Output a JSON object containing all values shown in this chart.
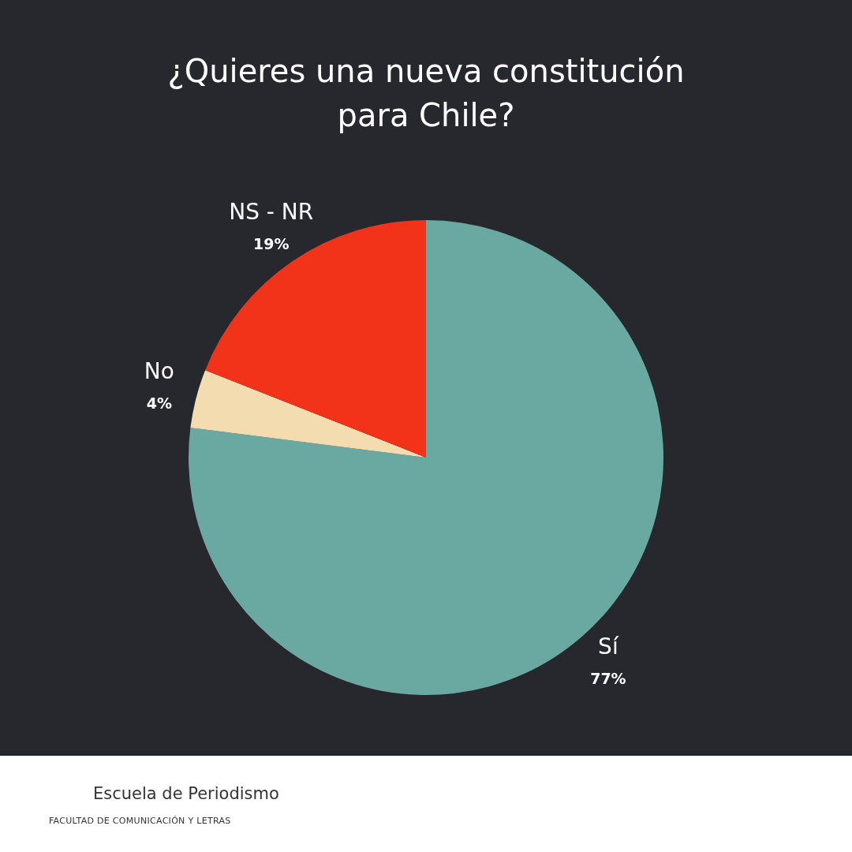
{
  "chart_data": {
    "type": "pie",
    "title": "¿Quieres una nueva constitución para Chile?",
    "categories": [
      "Sí",
      "No",
      "NS - NR"
    ],
    "values": [
      77,
      4,
      19
    ],
    "value_labels": [
      "77%",
      "4%",
      "19%"
    ],
    "colors": [
      "#6aa9a1",
      "#f3dcb0",
      "#f23219"
    ],
    "legend": false,
    "annotations": [
      "Escuela de Periodismo",
      "FACULTAD DE COMUNICACIÓN Y LETRAS"
    ]
  }
}
